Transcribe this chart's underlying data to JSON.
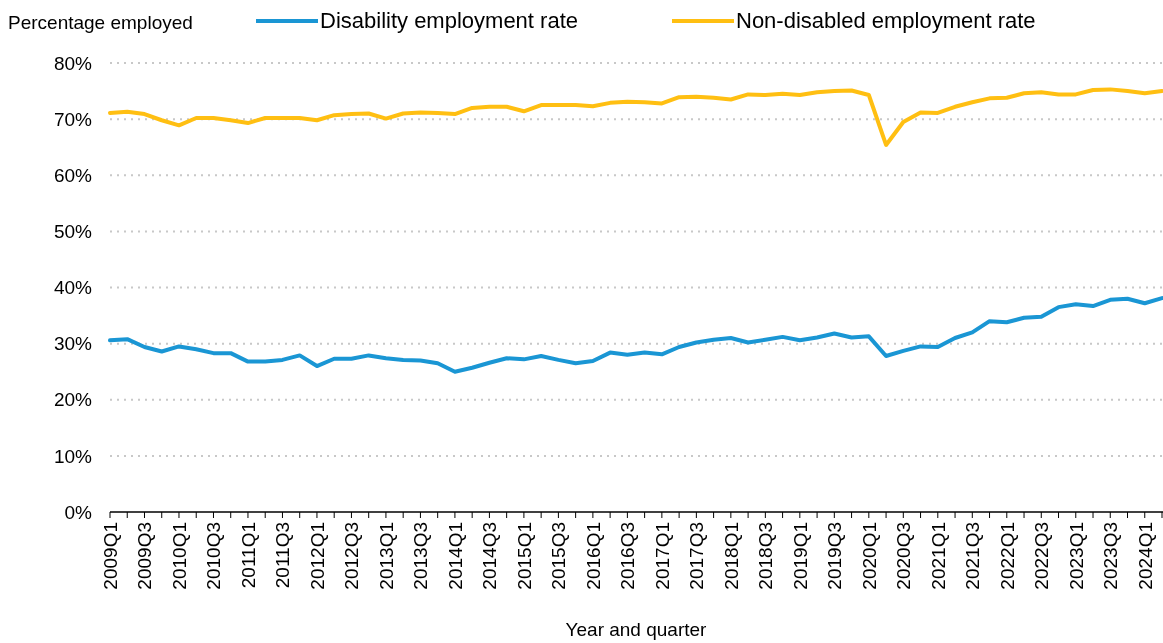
{
  "chart_data": {
    "type": "line",
    "xlabel": "Year and quarter",
    "ylabel": "Percentage employed",
    "categories": [
      "2009Q1",
      null,
      "2009Q3",
      null,
      "2010Q1",
      null,
      "2010Q3",
      null,
      "2011Q1",
      null,
      "2011Q3",
      null,
      "2012Q1",
      null,
      "2012Q3",
      null,
      "2013Q1",
      null,
      "2013Q3",
      null,
      "2014Q1",
      null,
      "2014Q3",
      null,
      "2015Q1",
      null,
      "2015Q3",
      null,
      "2016Q1",
      null,
      "2016Q3",
      null,
      "2017Q1",
      null,
      "2017Q3",
      null,
      "2018Q1",
      null,
      "2018Q3",
      null,
      "2019Q1",
      null,
      "2019Q3",
      null,
      "2020Q1",
      null,
      "2020Q3",
      null,
      "2021Q1",
      null,
      "2021Q3",
      null,
      "2022Q1",
      null,
      "2022Q3",
      null,
      "2023Q1",
      null,
      "2023Q3",
      null,
      "2024Q1",
      null
    ],
    "series": [
      {
        "name": "Disability employment rate",
        "color": "#1a96d4",
        "values": [
          30.6,
          30.8,
          29.4,
          28.6,
          29.5,
          29.0,
          28.3,
          28.3,
          26.8,
          26.8,
          27.1,
          27.9,
          26.0,
          27.3,
          27.3,
          27.9,
          27.4,
          27.1,
          27.0,
          26.5,
          25.0,
          25.7,
          26.6,
          27.4,
          27.2,
          27.8,
          27.1,
          26.5,
          26.9,
          28.4,
          28.0,
          28.4,
          28.1,
          29.4,
          30.2,
          30.7,
          31.0,
          30.2,
          30.7,
          31.2,
          30.6,
          31.1,
          31.8,
          31.1,
          31.3,
          27.8,
          28.7,
          29.5,
          29.4,
          31.0,
          32.0,
          34.0,
          33.8,
          34.6,
          34.8,
          36.5,
          37.0,
          36.7,
          37.8,
          38.0,
          37.2,
          38.1
        ]
      },
      {
        "name": "Non-disabled employment rate",
        "color": "#ffbf12",
        "values": [
          71.1,
          71.3,
          70.9,
          69.8,
          68.9,
          70.2,
          70.2,
          69.8,
          69.3,
          70.2,
          70.2,
          70.2,
          69.8,
          70.7,
          70.9,
          71.0,
          70.1,
          71.0,
          71.2,
          71.1,
          70.9,
          72.0,
          72.2,
          72.2,
          71.4,
          72.5,
          72.5,
          72.5,
          72.3,
          72.9,
          73.1,
          73.0,
          72.8,
          73.9,
          74.0,
          73.8,
          73.5,
          74.4,
          74.3,
          74.5,
          74.3,
          74.8,
          75.0,
          75.1,
          74.3,
          65.4,
          69.5,
          71.2,
          71.1,
          72.2,
          73.0,
          73.7,
          73.8,
          74.6,
          74.8,
          74.4,
          74.4,
          75.2,
          75.3,
          75.0,
          74.6,
          75.0
        ]
      }
    ],
    "ylim": [
      0,
      80
    ],
    "yticks": [
      {
        "value": 0,
        "label": "0%"
      },
      {
        "value": 10,
        "label": "10%"
      },
      {
        "value": 20,
        "label": "20%"
      },
      {
        "value": 30,
        "label": "30%"
      },
      {
        "value": 40,
        "label": "40%"
      },
      {
        "value": 50,
        "label": "50%"
      },
      {
        "value": 60,
        "label": "60%"
      },
      {
        "value": 70,
        "label": "70%"
      },
      {
        "value": 80,
        "label": "80%"
      }
    ],
    "grid": "y",
    "legend": "top",
    "marker": "none",
    "line_style": "solid"
  }
}
